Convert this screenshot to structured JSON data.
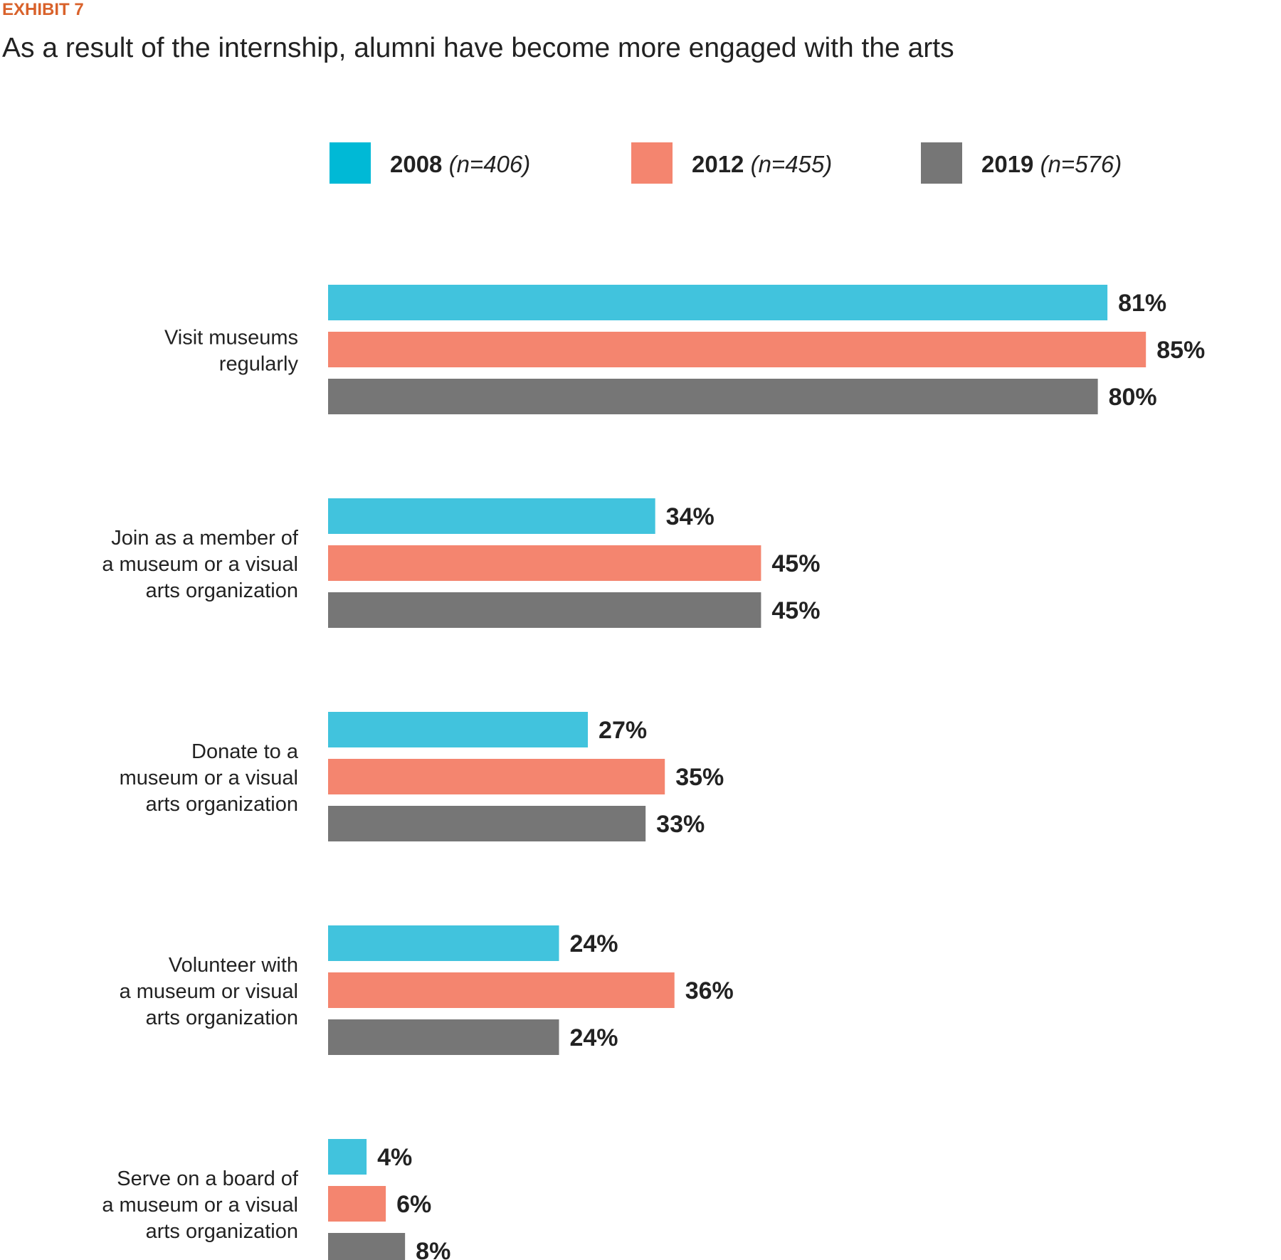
{
  "exhibit_label": "EXHIBIT 7",
  "title": "As a result of the internship, alumni have become more engaged with the arts",
  "chart_data": {
    "type": "bar",
    "orientation": "horizontal",
    "title": "As a result of the internship, alumni have become more engaged with the arts",
    "categories": [
      [
        "Visit museums",
        "regularly"
      ],
      [
        "Join as a member of",
        "a museum or a visual",
        "arts organization"
      ],
      [
        "Donate to a",
        "museum or a visual",
        "arts organization"
      ],
      [
        "Volunteer with",
        "a museum or visual",
        "arts organization"
      ],
      [
        "Serve on a board of",
        "a museum or a visual",
        "arts organization"
      ]
    ],
    "series": [
      {
        "name": "2008",
        "n_label": "(n=406)",
        "color": "#41c3dd",
        "legend_color": "#00b9d6",
        "values": [
          81,
          34,
          27,
          24,
          4
        ]
      },
      {
        "name": "2012",
        "n_label": "(n=455)",
        "color": "#f4856f",
        "legend_color": "#f4856f",
        "values": [
          85,
          45,
          35,
          36,
          6
        ]
      },
      {
        "name": "2019",
        "n_label": "(n=576)",
        "color": "#767676",
        "legend_color": "#767676",
        "values": [
          80,
          45,
          33,
          24,
          8
        ]
      }
    ],
    "value_suffix": "%",
    "xlim": [
      0,
      100
    ],
    "legend_position": "top",
    "grid": false
  }
}
